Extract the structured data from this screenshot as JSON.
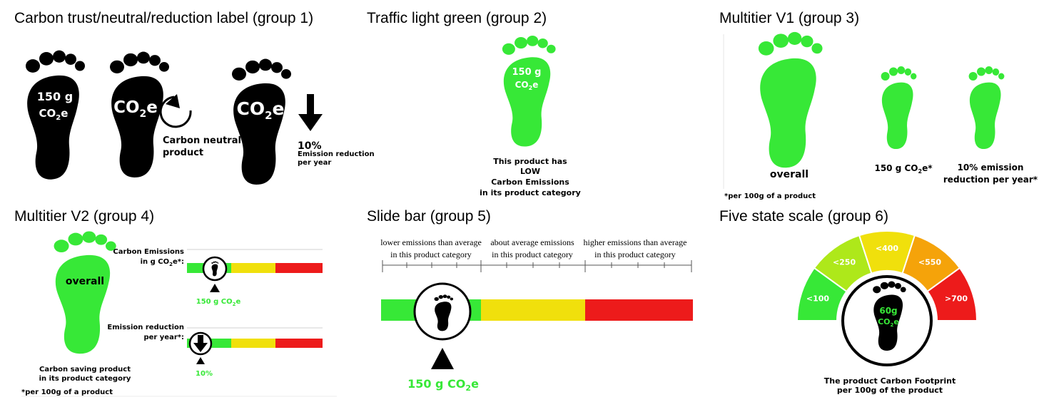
{
  "colors": {
    "green": "#37e837",
    "yellow": "#f0e00c",
    "red": "#ed1b1b",
    "lime": "#aee81a",
    "amber": "#f5a30a",
    "black": "#000000"
  },
  "groups": [
    {
      "title": "Carbon trust/neutral/reduction label (group 1)",
      "label1": {
        "line1": "150 g",
        "co": "CO",
        "sub": "2",
        "e": "e"
      },
      "label2": {
        "co": "CO",
        "sub": "2",
        "e": "e",
        "caption_line1": "Carbon neutral",
        "caption_line2": "product"
      },
      "label3": {
        "co": "CO",
        "sub": "2",
        "e": "e",
        "percent": "10%",
        "caption_line1": "Emission reduction",
        "caption_line2": "per year"
      }
    },
    {
      "title": "Traffic light green (group 2)",
      "value_line1": "150 g",
      "co": "CO",
      "sub": "2",
      "e": "e",
      "caption": [
        "This product has",
        "LOW",
        "Carbon Emissions",
        "in its product category"
      ]
    },
    {
      "title": "Multitier V1 (group 3)",
      "overall": "overall",
      "value": "150 g CO",
      "sub": "2",
      "value_suffix": "e*",
      "reduction_line1": "10% emission",
      "reduction_line2": "reduction per year*",
      "footnote": "*per 100g of a product"
    },
    {
      "title": "Multitier V2 (group 4)",
      "overall": "overall",
      "caption_line1": "Carbon saving product",
      "caption_line2": "in its product category",
      "footnote": "*per 100g of a product",
      "emissions_label_line1": "Carbon Emissions",
      "emissions_label_line2": "in g CO",
      "emissions_sub": "2",
      "emissions_suffix": "e*:",
      "emissions_value": "150 g CO",
      "emissions_value_sub": "2",
      "emissions_value_suffix": "e",
      "reduction_label_line1": "Emission reduction",
      "reduction_label_line2": "per year*:",
      "reduction_value": "10%"
    },
    {
      "title": "Slide bar (group 5)",
      "sections": [
        {
          "line1": "lower emissions than average",
          "line2": "in this product category"
        },
        {
          "line1": "about average emissions",
          "line2": "in this product category"
        },
        {
          "line1": "higher emissions than average",
          "line2": "in this product category"
        }
      ],
      "value": "150 g CO",
      "sub": "2",
      "value_suffix": "e"
    },
    {
      "title": "Five state scale (group 6)",
      "segments": [
        "<100",
        "<250",
        "<400",
        "<550",
        ">700"
      ],
      "center_line1": "60g",
      "co": "CO",
      "sub": "2",
      "e": "e",
      "caption_line1": "The product Carbon Footprint",
      "caption_line2": "per 100g of the product"
    }
  ]
}
